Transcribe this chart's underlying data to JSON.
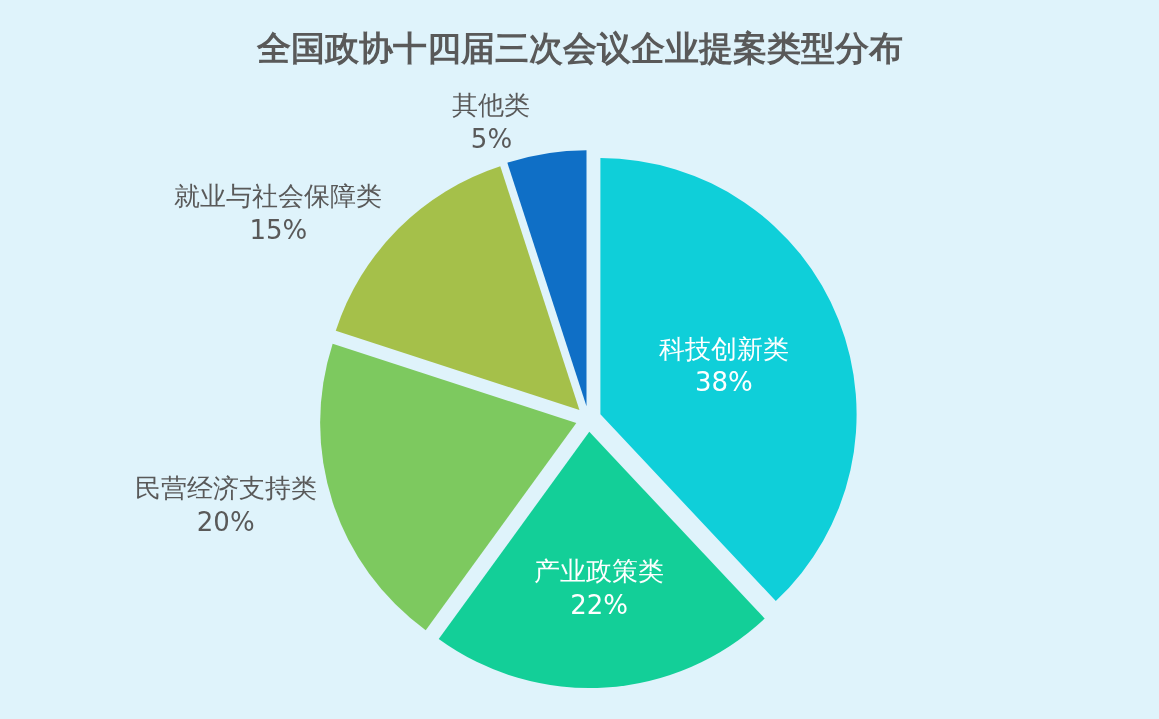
{
  "chart_data": {
    "type": "pie",
    "title": "全国政协十四届三次会议企业提案类型分布",
    "categories": [
      "科技创新类",
      "产业政策类",
      "民营经济支持类",
      "就业与社会保障类",
      "其他类"
    ],
    "values": [
      38,
      22,
      20,
      15,
      5
    ],
    "colors": [
      "#0fcfd9",
      "#13cf98",
      "#7dc95f",
      "#a5c04a",
      "#0f6fc6"
    ],
    "value_labels": [
      "38%",
      "22%",
      "20%",
      "15%",
      "5%"
    ],
    "legend": false
  }
}
